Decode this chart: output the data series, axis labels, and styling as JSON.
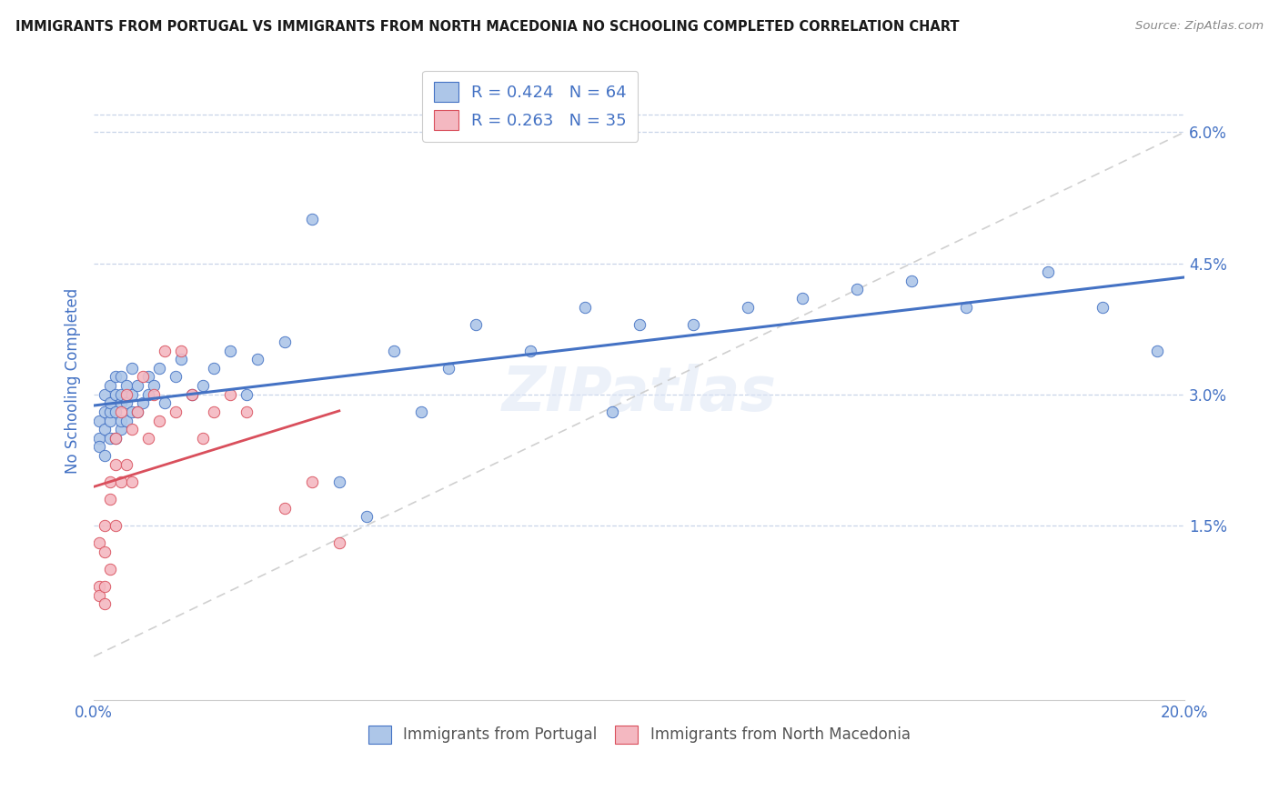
{
  "title": "IMMIGRANTS FROM PORTUGAL VS IMMIGRANTS FROM NORTH MACEDONIA NO SCHOOLING COMPLETED CORRELATION CHART",
  "source": "Source: ZipAtlas.com",
  "ylabel": "No Schooling Completed",
  "legend_label_1": "Immigrants from Portugal",
  "legend_label_2": "Immigrants from North Macedonia",
  "r1": 0.424,
  "n1": 64,
  "r2": 0.263,
  "n2": 35,
  "xlim": [
    0.0,
    0.2
  ],
  "ylim": [
    -0.005,
    0.068
  ],
  "yticks": [
    0.015,
    0.03,
    0.045,
    0.06
  ],
  "ytick_labels": [
    "1.5%",
    "3.0%",
    "4.5%",
    "6.0%"
  ],
  "xticks": [
    0.0,
    0.05,
    0.1,
    0.15,
    0.2
  ],
  "xtick_labels": [
    "0.0%",
    "",
    "",
    "",
    "20.0%"
  ],
  "color_portugal": "#adc6e8",
  "color_macedonia": "#f4b8c1",
  "line_color_portugal": "#4472c4",
  "line_color_macedonia": "#d94f5c",
  "ref_line_color": "#c8c8c8",
  "title_color": "#1a1a1a",
  "tick_color": "#4472c4",
  "background_color": "#ffffff",
  "watermark": "ZIPatlas",
  "portugal_scatter_x": [
    0.001,
    0.001,
    0.001,
    0.002,
    0.002,
    0.002,
    0.002,
    0.003,
    0.003,
    0.003,
    0.003,
    0.003,
    0.004,
    0.004,
    0.004,
    0.004,
    0.005,
    0.005,
    0.005,
    0.005,
    0.005,
    0.006,
    0.006,
    0.006,
    0.007,
    0.007,
    0.007,
    0.008,
    0.008,
    0.009,
    0.01,
    0.01,
    0.011,
    0.012,
    0.013,
    0.015,
    0.016,
    0.018,
    0.02,
    0.022,
    0.025,
    0.028,
    0.03,
    0.035,
    0.04,
    0.045,
    0.05,
    0.055,
    0.06,
    0.065,
    0.07,
    0.08,
    0.09,
    0.095,
    0.1,
    0.11,
    0.12,
    0.13,
    0.14,
    0.15,
    0.16,
    0.175,
    0.185,
    0.195
  ],
  "portugal_scatter_y": [
    0.027,
    0.025,
    0.024,
    0.026,
    0.028,
    0.023,
    0.03,
    0.025,
    0.027,
    0.028,
    0.029,
    0.031,
    0.025,
    0.028,
    0.03,
    0.032,
    0.026,
    0.027,
    0.029,
    0.03,
    0.032,
    0.027,
    0.029,
    0.031,
    0.028,
    0.03,
    0.033,
    0.028,
    0.031,
    0.029,
    0.03,
    0.032,
    0.031,
    0.033,
    0.029,
    0.032,
    0.034,
    0.03,
    0.031,
    0.033,
    0.035,
    0.03,
    0.034,
    0.036,
    0.05,
    0.02,
    0.016,
    0.035,
    0.028,
    0.033,
    0.038,
    0.035,
    0.04,
    0.028,
    0.038,
    0.038,
    0.04,
    0.041,
    0.042,
    0.043,
    0.04,
    0.044,
    0.04,
    0.035
  ],
  "macedonia_scatter_x": [
    0.001,
    0.001,
    0.001,
    0.002,
    0.002,
    0.002,
    0.002,
    0.003,
    0.003,
    0.003,
    0.004,
    0.004,
    0.004,
    0.005,
    0.005,
    0.006,
    0.006,
    0.007,
    0.007,
    0.008,
    0.009,
    0.01,
    0.011,
    0.012,
    0.013,
    0.015,
    0.016,
    0.018,
    0.02,
    0.022,
    0.025,
    0.028,
    0.035,
    0.04,
    0.045
  ],
  "macedonia_scatter_y": [
    0.013,
    0.008,
    0.007,
    0.015,
    0.012,
    0.008,
    0.006,
    0.02,
    0.018,
    0.01,
    0.025,
    0.015,
    0.022,
    0.028,
    0.02,
    0.03,
    0.022,
    0.026,
    0.02,
    0.028,
    0.032,
    0.025,
    0.03,
    0.027,
    0.035,
    0.028,
    0.035,
    0.03,
    0.025,
    0.028,
    0.03,
    0.028,
    0.017,
    0.02,
    0.013
  ]
}
